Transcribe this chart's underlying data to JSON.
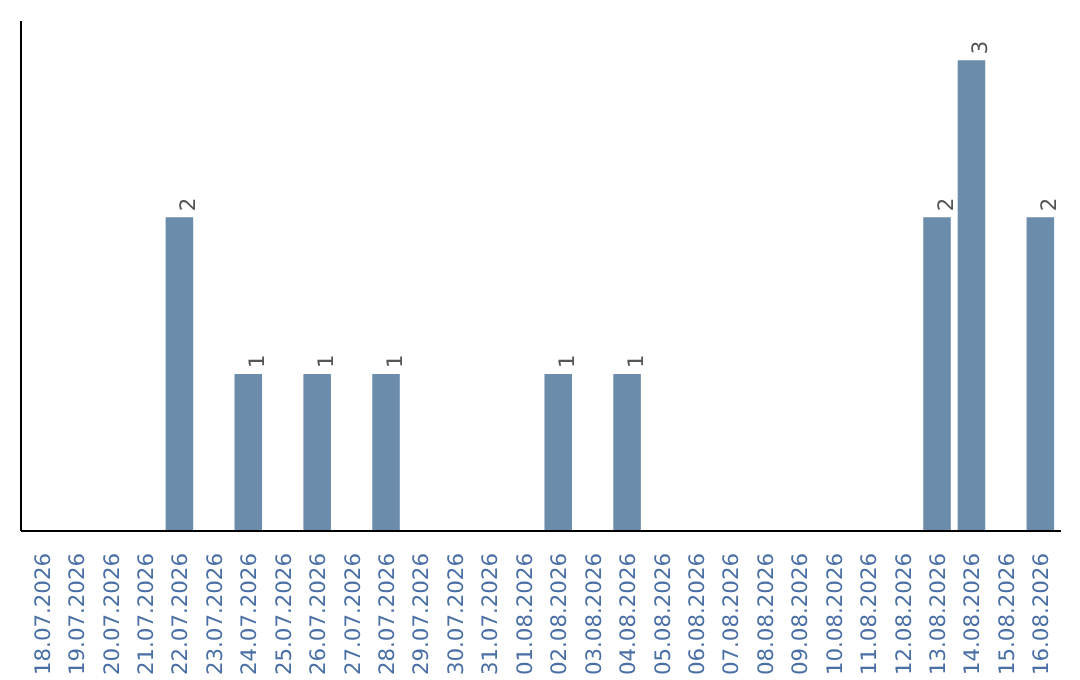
{
  "chart_data": {
    "type": "bar",
    "categories": [
      "18.07.2026",
      "19.07.2026",
      "20.07.2026",
      "21.07.2026",
      "22.07.2026",
      "23.07.2026",
      "24.07.2026",
      "25.07.2026",
      "26.07.2026",
      "27.07.2026",
      "28.07.2026",
      "29.07.2026",
      "30.07.2026",
      "31.07.2026",
      "01.08.2026",
      "02.08.2026",
      "03.08.2026",
      "04.08.2026",
      "05.08.2026",
      "06.08.2026",
      "07.08.2026",
      "08.08.2026",
      "09.08.2026",
      "10.08.2026",
      "11.08.2026",
      "12.08.2026",
      "13.08.2026",
      "14.08.2026",
      "15.08.2026",
      "16.08.2026"
    ],
    "values": [
      0,
      0,
      0,
      0,
      2,
      0,
      1,
      0,
      1,
      0,
      1,
      0,
      0,
      0,
      0,
      1,
      0,
      1,
      0,
      0,
      0,
      0,
      0,
      0,
      0,
      0,
      2,
      3,
      0,
      2
    ],
    "value_labels": [
      null,
      null,
      null,
      null,
      "2",
      null,
      "1",
      null,
      "1",
      null,
      "1",
      null,
      null,
      null,
      null,
      "1",
      null,
      "1",
      null,
      null,
      null,
      null,
      null,
      null,
      null,
      null,
      "2",
      "3",
      null,
      "2"
    ],
    "color": "#6b8cab",
    "ylim": [
      0,
      3.25
    ],
    "tick_labels": "x",
    "grid": false
  }
}
